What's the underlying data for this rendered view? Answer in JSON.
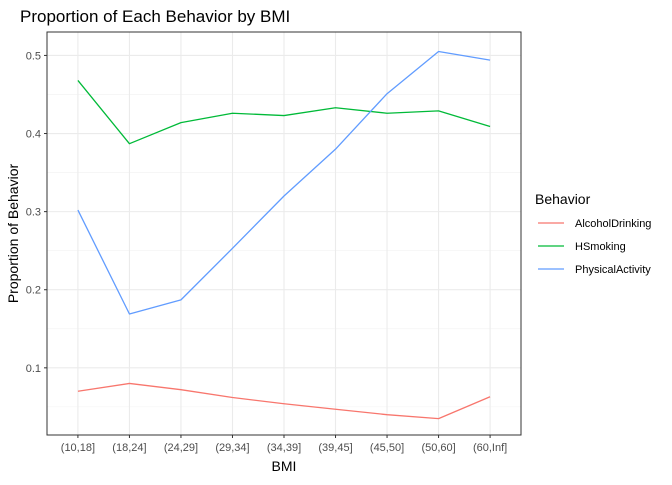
{
  "chart_data": {
    "type": "line",
    "title": "Proportion of Each Behavior by BMI",
    "xlabel": "BMI",
    "ylabel": "Proportion of Behavior",
    "categories": [
      "(10,18]",
      "(18,24]",
      "(24,29]",
      "(29,34]",
      "(34,39]",
      "(39,45]",
      "(45,50]",
      "(50,60]",
      "(60,Inf]"
    ],
    "ylim": [
      0.014,
      0.53
    ],
    "yticks": [
      "0.1",
      "0.2",
      "0.3",
      "0.4",
      "0.5"
    ],
    "ytick_values": [
      0.1,
      0.2,
      0.3,
      0.4,
      0.5
    ],
    "grid": true,
    "legend": {
      "title": "Behavior",
      "position": "right"
    },
    "series": [
      {
        "name": "AlcoholDrinking",
        "color": "#F8766D",
        "values": [
          0.07,
          0.08,
          0.072,
          0.062,
          0.054,
          0.047,
          0.04,
          0.035,
          0.063
        ]
      },
      {
        "name": "HSmoking",
        "color": "#00BA38",
        "values": [
          0.468,
          0.387,
          0.414,
          0.426,
          0.423,
          0.433,
          0.426,
          0.429,
          0.409
        ]
      },
      {
        "name": "PhysicalActivity",
        "color": "#619CFF",
        "values": [
          0.302,
          0.169,
          0.187,
          0.253,
          0.32,
          0.38,
          0.451,
          0.505,
          0.494
        ]
      }
    ]
  }
}
